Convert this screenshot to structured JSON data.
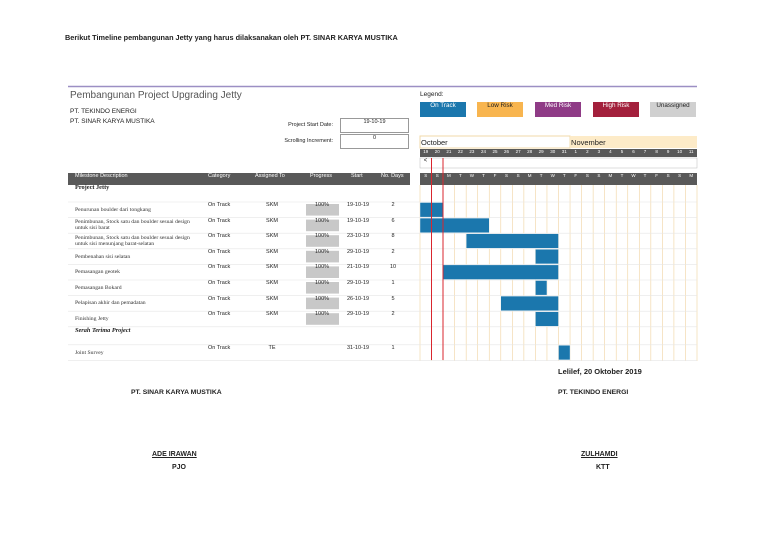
{
  "header": {
    "intro": "Berikut Timeline pembangunan Jetty yang harus dilaksanakan oleh PT. SINAR KARYA MUSTIKA"
  },
  "project": {
    "title": "Pembangunan Project Upgrading Jetty",
    "companies": [
      "PT. TEKINDO ENERGI",
      "PT. SINAR KARYA MUSTIKA"
    ],
    "start_label": "Project Start Date:",
    "start_value": "19-10-19",
    "scroll_label": "Scrolling Increment:",
    "scroll_value": "0"
  },
  "legend": {
    "title": "Legend:",
    "items": [
      {
        "label": "On Track",
        "color": "#1b77ad"
      },
      {
        "label": "Low Risk",
        "color": "#f8b54f"
      },
      {
        "label": "Med Risk",
        "color": "#8f3b86"
      },
      {
        "label": "High Risk",
        "color": "#a3203c"
      },
      {
        "label": "Unassigned",
        "color": "#d0d0d0"
      }
    ]
  },
  "timeline": {
    "months": [
      "October",
      "November"
    ],
    "scroll_left": "<",
    "days": [
      19,
      20,
      21,
      22,
      23,
      24,
      25,
      26,
      27,
      28,
      29,
      30,
      31,
      1,
      2,
      3,
      4,
      5,
      6,
      7,
      8,
      9,
      10,
      11
    ],
    "weekdays": [
      "S",
      "S",
      "M",
      "T",
      "W",
      "T",
      "F",
      "S",
      "S",
      "M",
      "T",
      "W",
      "T",
      "F",
      "S",
      "S",
      "M",
      "T",
      "W",
      "T",
      "F",
      "S",
      "S",
      "M"
    ]
  },
  "table": {
    "columns": [
      "Milestone Description",
      "Category",
      "Assigned To",
      "Progress",
      "Start",
      "No. Days"
    ],
    "sections": [
      {
        "title": "Project Jetty",
        "rows": [
          {
            "description": "Penurunan boulder dari tongkang",
            "category": "On Track",
            "assigned": "SKM",
            "progress": "100%",
            "start": "19-10-19",
            "days": 2
          },
          {
            "description": "Penimbunan, Stock satu dan boulder sesuai design untuk sisi barat",
            "category": "On Track",
            "assigned": "SKM",
            "progress": "100%",
            "start": "19-10-19",
            "days": 6
          },
          {
            "description": "Penimbunan, Stock satu dan boulder sesuai design untuk sisi menunjang barat-selatan",
            "category": "On Track",
            "assigned": "SKM",
            "progress": "100%",
            "start": "23-10-19",
            "days": 8
          },
          {
            "description": "Pembenahan sisi selatan",
            "category": "On Track",
            "assigned": "SKM",
            "progress": "100%",
            "start": "29-10-19",
            "days": 2
          },
          {
            "description": "Pemasangan geotek",
            "category": "On Track",
            "assigned": "SKM",
            "progress": "100%",
            "start": "21-10-19",
            "days": 10
          },
          {
            "description": "Pemasangan Bokard",
            "category": "On Track",
            "assigned": "SKM",
            "progress": "100%",
            "start": "29-10-19",
            "days": 1
          },
          {
            "description": "Pelapisan akhir dan pemadatan",
            "category": "On Track",
            "assigned": "SKM",
            "progress": "100%",
            "start": "26-10-19",
            "days": 5
          },
          {
            "description": "Finishing Jetty",
            "category": "On Track",
            "assigned": "SKM",
            "progress": "100%",
            "start": "29-10-19",
            "days": 2
          }
        ]
      },
      {
        "title": "Serah Terima Project",
        "rows": [
          {
            "description": "Joint Survey",
            "category": "On Track",
            "assigned": "TE",
            "progress": "",
            "start": "31-10-19",
            "days": 1
          }
        ]
      }
    ]
  },
  "footer": {
    "place_date": "Lelilef, 20 Oktober 2019",
    "signatories": [
      {
        "company": "PT. SINAR KARYA MUSTIKA",
        "name": "ADE IRAWAN",
        "role": "PJO"
      },
      {
        "company": "PT. TEKINDO ENERGI",
        "name": "ZULHAMDI",
        "role": "KTT"
      }
    ]
  }
}
